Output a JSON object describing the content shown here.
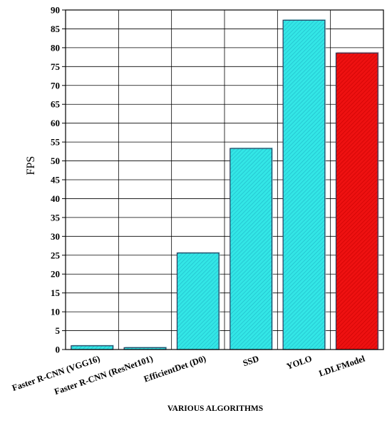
{
  "chart_data": {
    "type": "bar",
    "title": "",
    "xlabel": "VARIOUS ALGORITHMS",
    "ylabel": "FPS",
    "ylim": [
      0,
      90
    ],
    "yticks": [
      0,
      5,
      10,
      15,
      20,
      25,
      30,
      35,
      40,
      45,
      50,
      55,
      60,
      65,
      70,
      75,
      80,
      85,
      90
    ],
    "grid": true,
    "categories": [
      "Faster R-CNN (VGG16)",
      "Faster R-CNN (ResNet101)",
      "EfficientDet (D0)",
      "SSD",
      "YOLO",
      "LDLFModel"
    ],
    "values": [
      1,
      0.5,
      25.6,
      53.3,
      87.3,
      78.6
    ],
    "colors": [
      "#33e6e6",
      "#33e6e6",
      "#33e6e6",
      "#33e6e6",
      "#33e6e6",
      "#ee1111"
    ]
  }
}
